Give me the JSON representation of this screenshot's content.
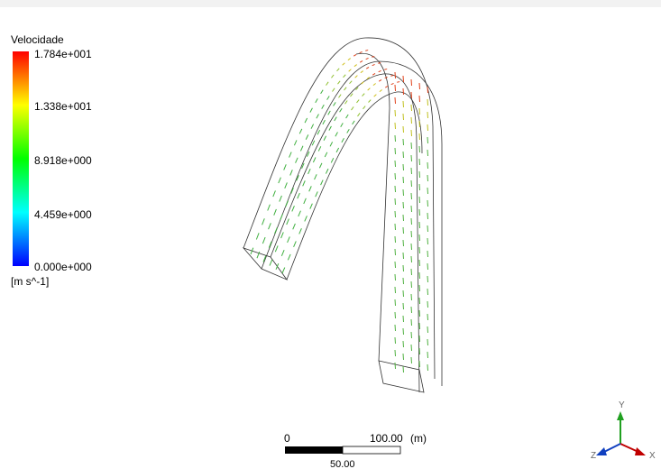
{
  "legend": {
    "title": "Velocidade",
    "labels": [
      "1.784e+001",
      "1.338e+001",
      "8.918e+000",
      "4.459e+000",
      "0.000e+000"
    ],
    "unit": "[m s^-1]"
  },
  "scale_bar": {
    "start": "0",
    "end": "100.00",
    "unit": "(m)",
    "middle": "50.00"
  },
  "axes": {
    "y": "Y",
    "z": "Z",
    "x": "X"
  }
}
